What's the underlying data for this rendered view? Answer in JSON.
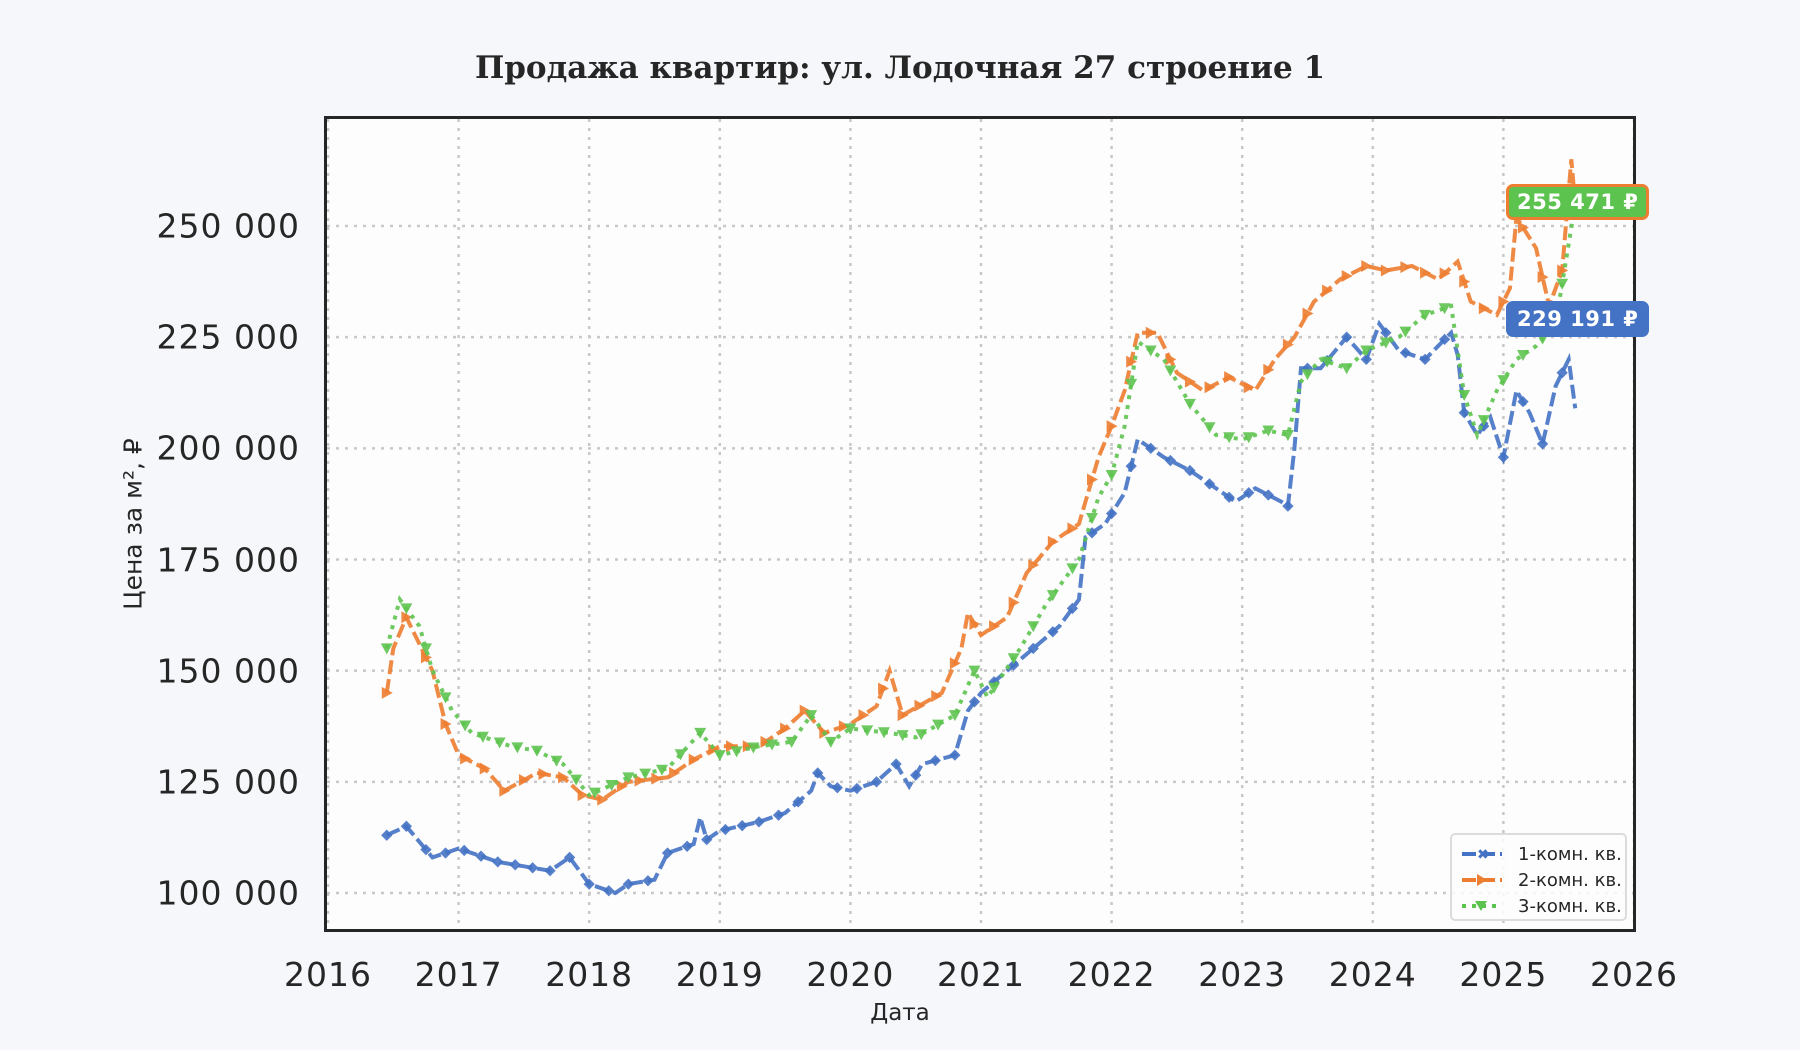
{
  "chart_data": {
    "type": "line",
    "title": "Продажа квартир: ул. Лодочная 27 строение 1",
    "xlabel": "Дата",
    "ylabel": "Цена за м², ₽",
    "xlim": [
      2016,
      2026
    ],
    "ylim": [
      91000,
      272000
    ],
    "x_ticks": [
      "2016",
      "2017",
      "2018",
      "2019",
      "2020",
      "2021",
      "2022",
      "2023",
      "2024",
      "2025",
      "2026"
    ],
    "y_ticks": [
      "100 000",
      "125 000",
      "150 000",
      "175 000",
      "200 000",
      "225 000",
      "250 000"
    ],
    "y_tick_values": [
      100000,
      125000,
      150000,
      175000,
      200000,
      225000,
      250000
    ],
    "grid": true,
    "legend_position": "lower right",
    "series": [
      {
        "name": "1-комн. кв.",
        "color": "#4472c4",
        "marker": "X",
        "linestyle": "dashed",
        "x": [
          2016.45,
          2016.6,
          2016.8,
          2017.0,
          2017.3,
          2017.7,
          2017.85,
          2018.0,
          2018.2,
          2018.3,
          2018.5,
          2018.6,
          2018.8,
          2018.85,
          2018.9,
          2019.0,
          2019.3,
          2019.5,
          2019.7,
          2019.75,
          2019.85,
          2020.0,
          2020.2,
          2020.35,
          2020.45,
          2020.55,
          2020.8,
          2020.9,
          2021.0,
          2021.2,
          2021.4,
          2021.6,
          2021.75,
          2021.8,
          2021.95,
          2022.1,
          2022.2,
          2022.4,
          2022.6,
          2022.8,
          2022.95,
          2023.1,
          2023.3,
          2023.35,
          2023.4,
          2023.45,
          2023.6,
          2023.8,
          2023.95,
          2024.05,
          2024.2,
          2024.4,
          2024.6,
          2024.65,
          2024.7,
          2024.8,
          2024.9,
          2025.0,
          2025.1,
          2025.2,
          2025.3,
          2025.4,
          2025.5,
          2025.55
        ],
        "values": [
          113000,
          115000,
          108000,
          110000,
          107000,
          105000,
          108000,
          102000,
          100000,
          102000,
          103000,
          109000,
          111000,
          117000,
          112000,
          114000,
          116000,
          118000,
          123000,
          127000,
          124000,
          123000,
          125000,
          129000,
          124000,
          129000,
          131000,
          141000,
          145000,
          150000,
          155000,
          160000,
          166000,
          180000,
          183000,
          190000,
          202000,
          198000,
          195000,
          191000,
          188000,
          191000,
          188000,
          187000,
          200000,
          218000,
          218000,
          225000,
          220000,
          228000,
          222000,
          220000,
          226000,
          221000,
          208000,
          203000,
          207000,
          198000,
          213000,
          208000,
          201000,
          214000,
          220000,
          209000
        ]
      },
      {
        "name": "2-комн. кв.",
        "color": "#ed7d31",
        "marker": ">",
        "linestyle": "dashed",
        "x": [
          2016.45,
          2016.5,
          2016.6,
          2016.8,
          2016.9,
          2017.0,
          2017.2,
          2017.35,
          2017.6,
          2017.8,
          2017.95,
          2018.1,
          2018.3,
          2018.6,
          2018.8,
          2019.0,
          2019.3,
          2019.5,
          2019.65,
          2019.8,
          2020.0,
          2020.2,
          2020.3,
          2020.4,
          2020.7,
          2020.85,
          2020.9,
          2021.0,
          2021.2,
          2021.35,
          2021.55,
          2021.75,
          2021.9,
          2022.0,
          2022.1,
          2022.2,
          2022.35,
          2022.5,
          2022.7,
          2022.9,
          2023.1,
          2023.25,
          2023.4,
          2023.55,
          2023.75,
          2023.95,
          2024.1,
          2024.3,
          2024.5,
          2024.65,
          2024.75,
          2024.95,
          2025.05,
          2025.1,
          2025.25,
          2025.35,
          2025.45,
          2025.52,
          2025.55
        ],
        "values": [
          145000,
          155000,
          162000,
          150000,
          138000,
          131000,
          128000,
          123000,
          127000,
          126000,
          122000,
          121000,
          125000,
          126000,
          130000,
          133000,
          133000,
          137000,
          141000,
          136000,
          138000,
          142000,
          150000,
          140000,
          145000,
          155000,
          163000,
          158000,
          162000,
          172000,
          179000,
          183000,
          198000,
          205000,
          213000,
          226000,
          226000,
          217000,
          213000,
          216000,
          213000,
          220000,
          225000,
          233000,
          238000,
          241000,
          240000,
          241000,
          238000,
          242000,
          233000,
          230000,
          236000,
          252000,
          245000,
          232000,
          240000,
          265000,
          255000
        ]
      },
      {
        "name": "3-комн. кв.",
        "color": "#5dc34f",
        "marker": "v",
        "linestyle": "dotted",
        "x": [
          2016.45,
          2016.55,
          2016.7,
          2016.8,
          2016.95,
          2017.1,
          2017.4,
          2017.6,
          2017.8,
          2018.0,
          2018.3,
          2018.6,
          2018.85,
          2019.0,
          2019.3,
          2019.55,
          2019.7,
          2019.85,
          2020.0,
          2020.3,
          2020.5,
          2020.8,
          2020.95,
          2021.05,
          2021.3,
          2021.5,
          2021.75,
          2021.9,
          2022.0,
          2022.1,
          2022.2,
          2022.4,
          2022.6,
          2022.8,
          2023.0,
          2023.2,
          2023.35,
          2023.45,
          2023.6,
          2023.8,
          2023.95,
          2024.2,
          2024.4,
          2024.6,
          2024.7,
          2024.8,
          2024.95,
          2025.1,
          2025.25,
          2025.4,
          2025.5,
          2025.55
        ],
        "values": [
          155000,
          166000,
          160000,
          150000,
          141000,
          136000,
          133000,
          132000,
          129000,
          122000,
          126000,
          128000,
          136000,
          131000,
          133000,
          134000,
          140000,
          134000,
          137000,
          136000,
          135000,
          140000,
          150000,
          144000,
          155000,
          165000,
          175000,
          189000,
          194000,
          205000,
          224000,
          220000,
          210000,
          203000,
          202000,
          204000,
          203000,
          215000,
          220000,
          218000,
          222000,
          225000,
          230000,
          232000,
          212000,
          203000,
          213000,
          220000,
          223000,
          228000,
          246000,
          255000
        ]
      }
    ],
    "annotations": [
      {
        "text": "255 471 ₽",
        "bg": "#5dc34f",
        "border": "#ed7d31",
        "y": 255471
      },
      {
        "text": "229 191 ₽",
        "bg": "#4472c4",
        "border": "#4472c4",
        "y": 229191
      }
    ]
  }
}
